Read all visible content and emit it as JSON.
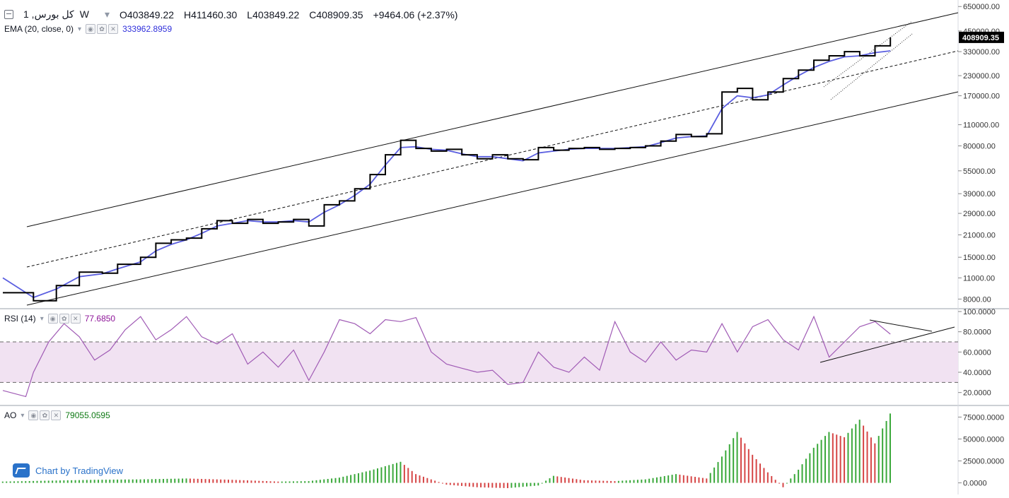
{
  "symbol": {
    "name": "کل بورس",
    "interval": "1W",
    "open_label": "O403849.22",
    "high_label": "H411460.30",
    "low_label": "L403849.22",
    "close_label": "C408909.35",
    "change_label": "+9464.06 (+2.37%)"
  },
  "ema": {
    "label": "EMA (20, close, 0)",
    "value": "333962.8959"
  },
  "rsi": {
    "label": "RSI (14)",
    "value": "77.6850"
  },
  "ao": {
    "label": "AO",
    "value": "79055.0595"
  },
  "branding": {
    "text": "Chart by TradingView"
  },
  "colors": {
    "price": "#000000",
    "ema": "#5b5fe0",
    "rsi": "#a05bb5",
    "rsi_band": "#f1e2f2",
    "ao_up": "#3aa83a",
    "ao_down": "#d64545",
    "price_tag": "#000000"
  },
  "chart_data": [
    {
      "type": "line",
      "title": "کل بورس, 1W",
      "scale": "log",
      "ylim": [
        7300,
        680000
      ],
      "y_ticks": [
        650000,
        450000,
        330000,
        230000,
        170000,
        110000,
        80000,
        55000,
        39000,
        29000,
        21000,
        15000,
        11000,
        8000
      ],
      "y_tick_labels": [
        "650000.00",
        "450000.00",
        "330000.00",
        "230000.00",
        "170000.00",
        "110000.00",
        "80000.00",
        "55000.00",
        "39000.00",
        "29000.00",
        "21000.00",
        "15000.00",
        "11000.00",
        "8000.00"
      ],
      "last_price_label": "408909.35",
      "x_range": [
        0,
        120
      ],
      "series": [
        {
          "name": "Price",
          "x": [
            0,
            4,
            7,
            10,
            13,
            15,
            18,
            20,
            22,
            24,
            26,
            28,
            30,
            32,
            34,
            36,
            38,
            40,
            42,
            44,
            46,
            48,
            50,
            52,
            54,
            56,
            58,
            60,
            62,
            64,
            66,
            68,
            70,
            72,
            74,
            76,
            78,
            80,
            82,
            84,
            86,
            88,
            90,
            92,
            94,
            96,
            98,
            100,
            102,
            104,
            106,
            108,
            110,
            112,
            114,
            116
          ],
          "values": [
            8800,
            7800,
            9800,
            12000,
            11800,
            13500,
            15000,
            18500,
            19500,
            20000,
            23000,
            26000,
            25000,
            26500,
            25000,
            25500,
            26500,
            24000,
            33000,
            35000,
            42000,
            52000,
            70000,
            87000,
            77000,
            74000,
            76000,
            70000,
            66000,
            70000,
            66000,
            65000,
            78000,
            75000,
            77000,
            78000,
            76000,
            77000,
            78000,
            80000,
            86000,
            95000,
            92000,
            96000,
            180000,
            190000,
            160000,
            180000,
            220000,
            250000,
            290000,
            310000,
            330000,
            310000,
            360000,
            408909
          ]
        },
        {
          "name": "EMA (20, close, 0)",
          "x": [
            0,
            4,
            7,
            10,
            13,
            15,
            18,
            20,
            22,
            24,
            26,
            28,
            30,
            32,
            34,
            36,
            38,
            40,
            42,
            44,
            46,
            48,
            50,
            52,
            54,
            56,
            58,
            60,
            62,
            64,
            66,
            68,
            70,
            72,
            74,
            76,
            78,
            80,
            82,
            84,
            86,
            88,
            90,
            92,
            94,
            96,
            98,
            100,
            102,
            104,
            106,
            108,
            110,
            112,
            114,
            116
          ],
          "values": [
            11000,
            8200,
            9300,
            11200,
            11700,
            12600,
            14000,
            16500,
            18200,
            19500,
            21500,
            24000,
            25000,
            26000,
            25500,
            25500,
            26000,
            25500,
            29500,
            33000,
            38000,
            45000,
            60000,
            78000,
            79000,
            76000,
            75000,
            71000,
            68000,
            68000,
            66000,
            64000,
            72000,
            74000,
            76000,
            77000,
            77000,
            77000,
            78000,
            79000,
            84000,
            90000,
            92000,
            93000,
            140000,
            170000,
            165000,
            172000,
            200000,
            230000,
            260000,
            285000,
            305000,
            310000,
            325000,
            333963
          ]
        }
      ],
      "annotations": [
        "Upper channel line",
        "Lower channel line",
        "Dashed midline",
        "Dotted wedge lines"
      ]
    },
    {
      "type": "line",
      "title": "RSI (14)",
      "ylim": [
        10,
        100
      ],
      "y_ticks": [
        100,
        80,
        60,
        40,
        20
      ],
      "y_tick_labels": [
        "100.0000",
        "80.0000",
        "60.0000",
        "40.0000",
        "20.0000"
      ],
      "band": [
        30,
        70
      ],
      "x_range": [
        0,
        120
      ],
      "series": [
        {
          "name": "RSI",
          "x": [
            0,
            3,
            4,
            6,
            8,
            10,
            12,
            14,
            16,
            18,
            20,
            22,
            24,
            26,
            28,
            30,
            32,
            34,
            36,
            38,
            40,
            42,
            44,
            46,
            48,
            50,
            52,
            54,
            56,
            58,
            60,
            62,
            64,
            66,
            68,
            70,
            72,
            74,
            76,
            78,
            80,
            82,
            84,
            86,
            88,
            90,
            92,
            94,
            96,
            98,
            100,
            102,
            104,
            106,
            108,
            110,
            112,
            114,
            116
          ],
          "values": [
            22,
            16,
            40,
            70,
            88,
            75,
            52,
            62,
            82,
            95,
            72,
            82,
            95,
            75,
            68,
            78,
            48,
            60,
            45,
            62,
            32,
            60,
            92,
            88,
            78,
            92,
            90,
            94,
            60,
            48,
            44,
            40,
            42,
            28,
            30,
            60,
            45,
            40,
            55,
            42,
            90,
            60,
            50,
            70,
            52,
            62,
            60,
            88,
            60,
            85,
            92,
            72,
            62,
            95,
            55,
            70,
            85,
            90,
            77.685
          ]
        }
      ],
      "annotations": [
        "Rising support line",
        "Falling resistance line"
      ]
    },
    {
      "type": "bar",
      "title": "AO",
      "ylim": [
        -10000,
        85000
      ],
      "y_ticks": [
        75000,
        50000,
        25000,
        0
      ],
      "y_tick_labels": [
        "75000.0000",
        "50000.0000",
        "25000.0000",
        "0.0000"
      ],
      "x_range": [
        0,
        120
      ],
      "series": [
        {
          "name": "AO",
          "x": [
            0,
            6,
            12,
            18,
            24,
            30,
            36,
            40,
            44,
            48,
            52,
            54,
            58,
            62,
            66,
            70,
            72,
            76,
            80,
            84,
            88,
            92,
            94,
            96,
            98,
            100,
            102,
            104,
            106,
            108,
            110,
            112,
            114,
            116
          ],
          "values": [
            1500,
            2500,
            3500,
            4000,
            5000,
            3500,
            1500,
            2000,
            6000,
            14000,
            24000,
            10000,
            -2000,
            -5000,
            -6000,
            -3000,
            8000,
            3000,
            2000,
            4000,
            10000,
            5000,
            30000,
            58000,
            32000,
            12000,
            -5000,
            15000,
            40000,
            58000,
            52000,
            72000,
            45000,
            79055
          ]
        }
      ]
    }
  ]
}
